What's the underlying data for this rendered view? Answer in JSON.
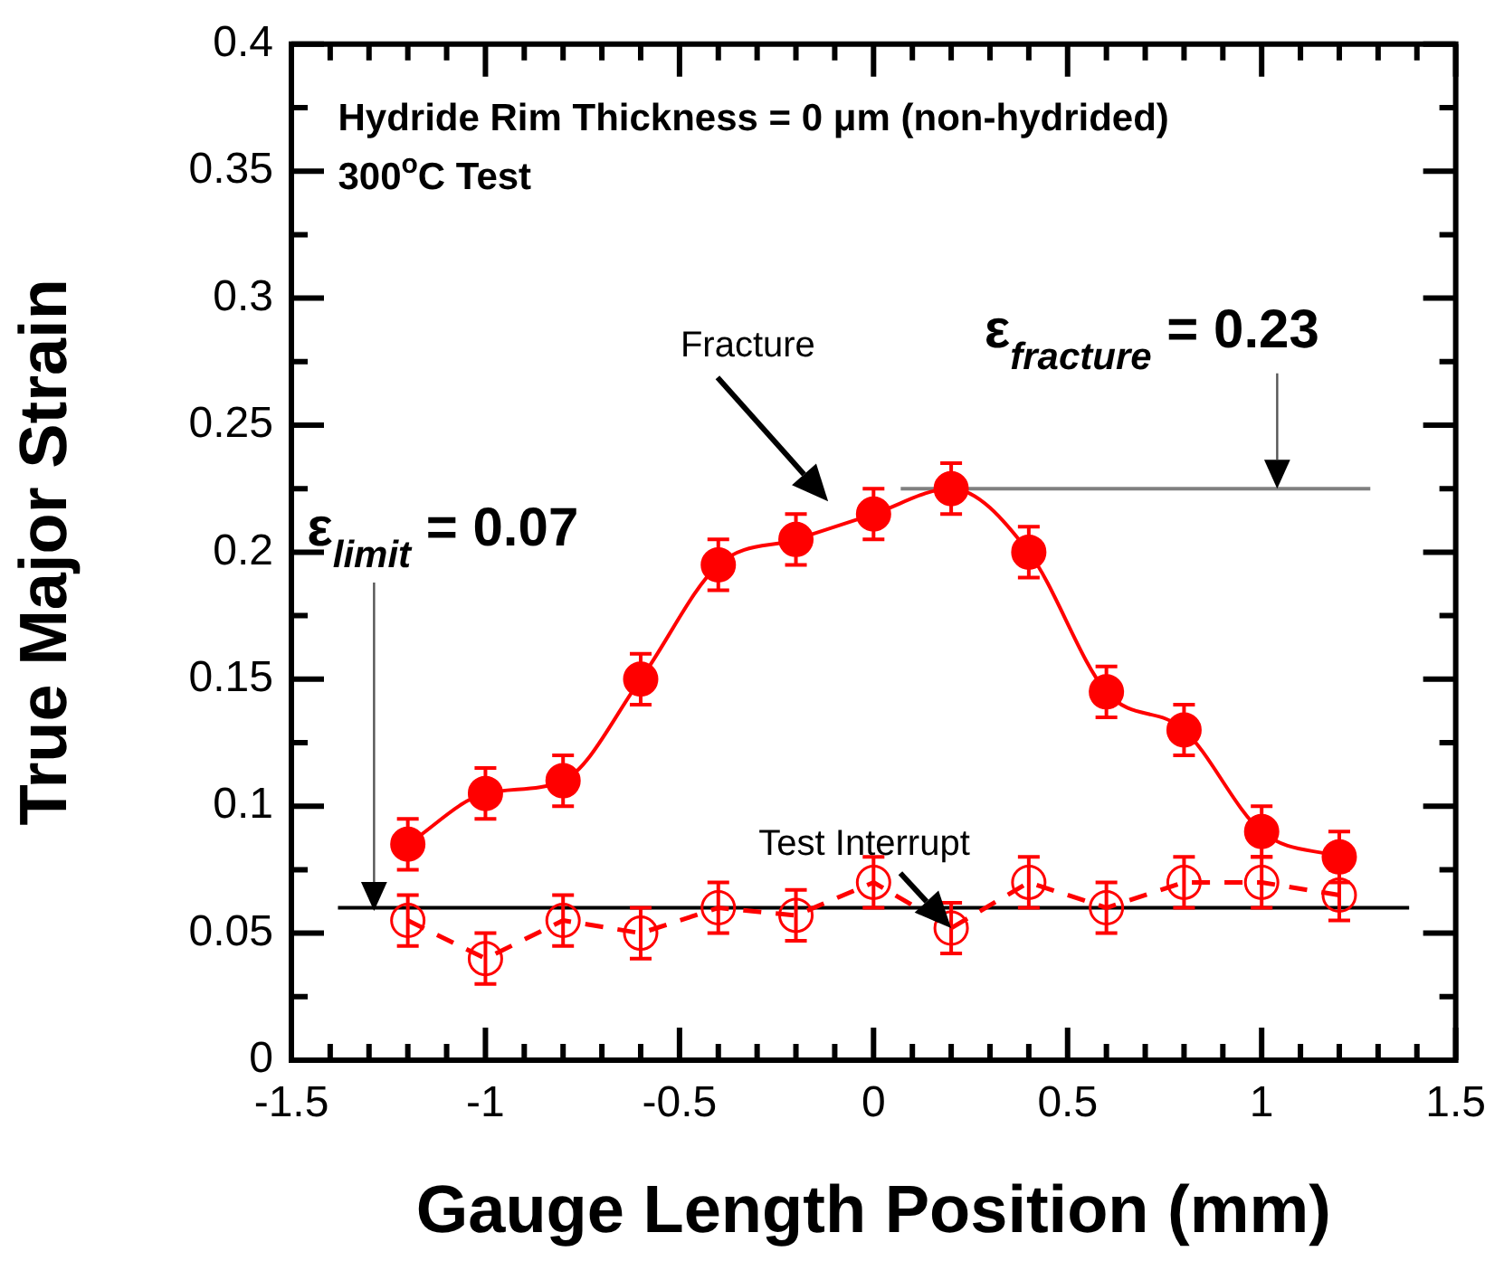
{
  "chart_data": {
    "type": "line",
    "xlabel": "Gauge Length Position (mm)",
    "ylabel": "True Major Strain",
    "xlim": [
      -1.5,
      1.5
    ],
    "ylim": [
      0,
      0.4
    ],
    "xticks": [
      -1.5,
      {
        "value": -1.4,
        "label": null
      },
      {
        "value": -1.3,
        "label": null
      },
      {
        "value": -1.2,
        "label": null
      },
      {
        "value": -1.1,
        "label": null
      },
      -1,
      {
        "value": -0.9,
        "label": null
      },
      {
        "value": -0.8,
        "label": null
      },
      {
        "value": -0.7,
        "label": null
      },
      {
        "value": -0.6,
        "label": null
      },
      -0.5,
      {
        "value": -0.4,
        "label": null
      },
      {
        "value": -0.3,
        "label": null
      },
      {
        "value": -0.2,
        "label": null
      },
      {
        "value": -0.1,
        "label": null
      },
      0,
      {
        "value": 0.1,
        "label": null
      },
      {
        "value": 0.2,
        "label": null
      },
      {
        "value": 0.3,
        "label": null
      },
      {
        "value": 0.4,
        "label": null
      },
      0.5,
      {
        "value": 0.6,
        "label": null
      },
      {
        "value": 0.7,
        "label": null
      },
      {
        "value": 0.8,
        "label": null
      },
      {
        "value": 0.9,
        "label": null
      },
      1,
      {
        "value": 1.1,
        "label": null
      },
      {
        "value": 1.2,
        "label": null
      },
      {
        "value": 1.3,
        "label": null
      },
      {
        "value": 1.4,
        "label": null
      },
      1.5
    ],
    "yticks": [
      0,
      {
        "value": 0.025,
        "label": null
      },
      0.05,
      {
        "value": 0.075,
        "label": null
      },
      0.1,
      {
        "value": 0.125,
        "label": null
      },
      0.15,
      {
        "value": 0.175,
        "label": null
      },
      0.2,
      {
        "value": 0.225,
        "label": null
      },
      0.25,
      {
        "value": 0.275,
        "label": null
      },
      0.3,
      {
        "value": 0.325,
        "label": null
      },
      0.35,
      {
        "value": 0.375,
        "label": null
      },
      0.4
    ],
    "grid": false,
    "legend": false,
    "series": [
      {
        "color": "#ff0000",
        "marker": "circle",
        "line_style": "solid",
        "x": [
          -1.2,
          -1,
          -0.8,
          -0.6,
          -0.4,
          -0.2,
          0,
          0.2,
          0.4,
          0.6,
          0.8,
          1,
          1.2
        ],
        "values": [
          0.085,
          0.105,
          0.11,
          0.15,
          0.195,
          0.205,
          0.215,
          0.225,
          0.2,
          0.145,
          0.13,
          0.09,
          0.08
        ],
        "errors": [
          0.01,
          0.01,
          0.01,
          0.01,
          0.01,
          0.01,
          0.01,
          0.01,
          0.01,
          0.01,
          0.01,
          0.01,
          0.01
        ]
      },
      {
        "color": "#ff0000",
        "marker": "circle",
        "line_style": "dashed",
        "x": [
          -1.2,
          -1,
          -0.8,
          -0.6,
          -0.4,
          -0.2,
          0,
          0.2,
          0.4,
          0.6,
          0.8,
          1,
          1.2
        ],
        "values": [
          0.055,
          0.04,
          0.055,
          0.05,
          0.06,
          0.057,
          0.07,
          0.052,
          0.07,
          0.06,
          0.07,
          0.07,
          0.065
        ],
        "errors": [
          0.01,
          0.01,
          0.01,
          0.01,
          0.01,
          0.01,
          0.01,
          0.01,
          0.01,
          0.01,
          0.01,
          0.01,
          0.01
        ]
      },
      {
        "color": "#000000",
        "marker": "none",
        "line_style": "solid",
        "x": [
          -1.38,
          1.38
        ],
        "values": [
          0.06,
          0.06
        ]
      },
      {
        "color": "#808080",
        "marker": "none",
        "line_style": "solid",
        "x": [
          0.07,
          1.28
        ],
        "values": [
          0.225,
          0.225
        ]
      }
    ],
    "annotations": [
      "Hydride Rim Thickness = 0 μm (non-hydrided)",
      "300$^{o}$C Test",
      "Fracture",
      {
        "text": "Test Interrupt",
        "x": 0.2,
        "y": 0.052
      },
      "ε$_{limit}$ = 0.07",
      {
        "text": "ε$_{fracture}$ = 0.23",
        "x": 1.04,
        "y": 0.225
      }
    ]
  }
}
